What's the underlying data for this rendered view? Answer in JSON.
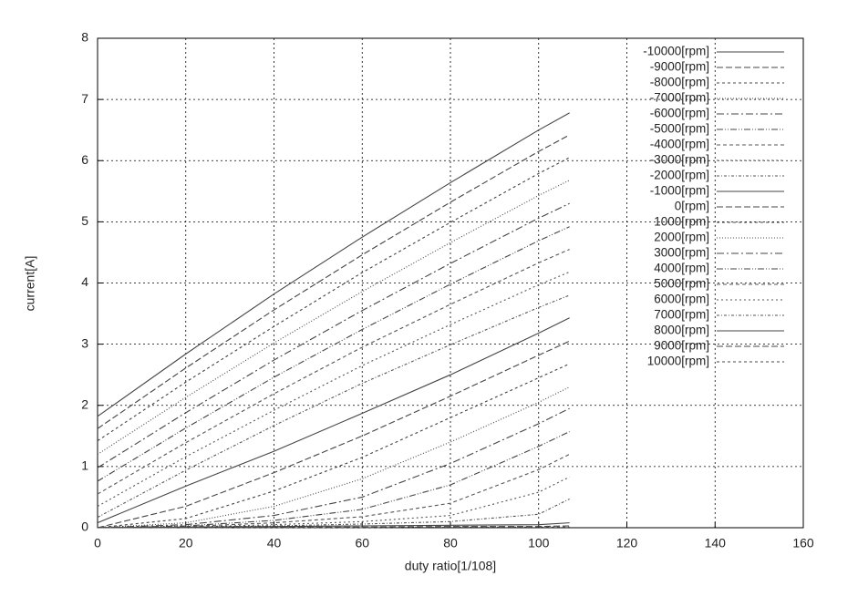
{
  "chart_data": {
    "type": "line",
    "x_label": "duty ratio[1/108]",
    "y_label": "current[A]",
    "x": [
      0,
      20,
      40,
      60,
      80,
      100,
      107
    ],
    "xlim": [
      0,
      160
    ],
    "xticks": [
      0,
      20,
      40,
      60,
      80,
      100,
      120,
      140,
      160
    ],
    "ylim": [
      0,
      8
    ],
    "yticks": [
      0,
      1,
      2,
      3,
      4,
      5,
      6,
      7,
      8
    ],
    "grid": true,
    "legend": "upper-right",
    "series": [
      {
        "name": "-10000[rpm]",
        "color": "#444",
        "dash": "none",
        "values": [
          1.82,
          2.84,
          3.82,
          4.75,
          5.64,
          6.5,
          6.78
        ]
      },
      {
        "name": "-9000[rpm]",
        "color": "#444",
        "dash": "7,3",
        "values": [
          1.62,
          2.61,
          3.56,
          4.46,
          5.32,
          6.15,
          6.42
        ]
      },
      {
        "name": "-8000[rpm]",
        "color": "#444",
        "dash": "3,3",
        "values": [
          1.42,
          2.38,
          3.29,
          4.17,
          4.99,
          5.79,
          6.05
        ]
      },
      {
        "name": "-7000[rpm]",
        "color": "#444",
        "dash": "1,2",
        "values": [
          1.2,
          2.13,
          3.02,
          3.86,
          4.66,
          5.43,
          5.68
        ]
      },
      {
        "name": "-6000[rpm]",
        "color": "#444",
        "dash": "8,3,2,3",
        "values": [
          0.98,
          1.88,
          2.74,
          3.55,
          4.32,
          5.06,
          5.3
        ]
      },
      {
        "name": "-5000[rpm]",
        "color": "#444",
        "dash": "7,2,1,2,1,2",
        "values": [
          0.76,
          1.63,
          2.46,
          3.24,
          3.98,
          4.69,
          4.92
        ]
      },
      {
        "name": "-4000[rpm]",
        "color": "#555",
        "dash": "4,3",
        "values": [
          0.55,
          1.39,
          2.19,
          2.95,
          3.65,
          4.33,
          4.55
        ]
      },
      {
        "name": "-3000[rpm]",
        "color": "#555",
        "dash": "2,3",
        "values": [
          0.35,
          1.16,
          1.92,
          2.65,
          3.32,
          3.97,
          4.18
        ]
      },
      {
        "name": "-2000[rpm]",
        "color": "#555",
        "dash": "3,2,1,2",
        "values": [
          0.17,
          0.94,
          1.67,
          2.36,
          2.99,
          3.6,
          3.8
        ]
      },
      {
        "name": "-1000[rpm]",
        "color": "#444",
        "dash": "none",
        "values": [
          0.08,
          0.68,
          1.25,
          1.87,
          2.5,
          3.18,
          3.43
        ]
      },
      {
        "name": "0[rpm]",
        "color": "#444",
        "dash": "7,3",
        "values": [
          0,
          0.35,
          0.9,
          1.5,
          2.15,
          2.82,
          3.05
        ]
      },
      {
        "name": "1000[rpm]",
        "color": "#444",
        "dash": "3,3",
        "values": [
          0,
          0.15,
          0.6,
          1.15,
          1.8,
          2.45,
          2.68
        ]
      },
      {
        "name": "2000[rpm]",
        "color": "#444",
        "dash": "1,2",
        "values": [
          0,
          0.08,
          0.35,
          0.8,
          1.4,
          2.05,
          2.3
        ]
      },
      {
        "name": "3000[rpm]",
        "color": "#444",
        "dash": "8,3,2,3",
        "values": [
          0,
          0.05,
          0.2,
          0.5,
          1.05,
          1.7,
          1.95
        ]
      },
      {
        "name": "4000[rpm]",
        "color": "#444",
        "dash": "7,2,1,2,1,2",
        "values": [
          0,
          0.03,
          0.12,
          0.3,
          0.7,
          1.33,
          1.57
        ]
      },
      {
        "name": "5000[rpm]",
        "color": "#555",
        "dash": "4,3",
        "values": [
          0,
          0.02,
          0.08,
          0.18,
          0.4,
          0.95,
          1.2
        ]
      },
      {
        "name": "6000[rpm]",
        "color": "#555",
        "dash": "2,3",
        "values": [
          0,
          0.01,
          0.05,
          0.1,
          0.2,
          0.58,
          0.83
        ]
      },
      {
        "name": "7000[rpm]",
        "color": "#555",
        "dash": "3,2,1,2",
        "values": [
          0,
          0.01,
          0.03,
          0.06,
          0.1,
          0.22,
          0.47
        ]
      },
      {
        "name": "8000[rpm]",
        "color": "#444",
        "dash": "none",
        "values": [
          0,
          0.01,
          0.02,
          0.03,
          0.04,
          0.05,
          0.08
        ]
      },
      {
        "name": "9000[rpm]",
        "color": "#444",
        "dash": "7,3",
        "values": [
          0,
          0,
          0.01,
          0.01,
          0.02,
          0.02,
          0.03
        ]
      },
      {
        "name": "10000[rpm]",
        "color": "#444",
        "dash": "3,3",
        "values": [
          0,
          0,
          0,
          0,
          0.01,
          0.01,
          0.01
        ]
      }
    ]
  }
}
